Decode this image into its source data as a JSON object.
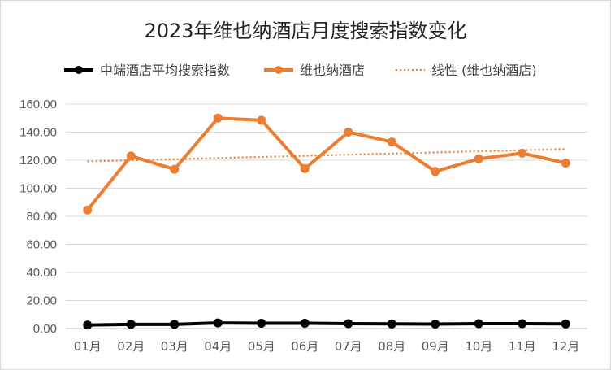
{
  "chart_data": {
    "type": "line",
    "title": "2023年维也纳酒店月度搜索指数变化",
    "categories": [
      "01月",
      "02月",
      "03月",
      "04月",
      "05月",
      "06月",
      "07月",
      "08月",
      "09月",
      "10月",
      "11月",
      "12月"
    ],
    "series": [
      {
        "name": "中端酒店平均搜索指数",
        "color": "#000000",
        "values": [
          2.5,
          3.0,
          3.0,
          4.0,
          3.8,
          3.8,
          3.5,
          3.3,
          3.2,
          3.5,
          3.5,
          3.3
        ]
      },
      {
        "name": "维也纳酒店",
        "color": "#ED7D31",
        "values": [
          84.5,
          123,
          113.5,
          150,
          148.5,
          114,
          140,
          133,
          112,
          121,
          125,
          118
        ]
      }
    ],
    "trendline": {
      "name": "线性 (维也纳酒店)",
      "color": "#ED7D31",
      "style": "dotted"
    },
    "ylim": [
      0,
      160
    ],
    "yticks": [
      "0.00",
      "20.00",
      "40.00",
      "60.00",
      "80.00",
      "100.00",
      "120.00",
      "140.00",
      "160.00"
    ],
    "grid": true,
    "legend_position": "top"
  }
}
